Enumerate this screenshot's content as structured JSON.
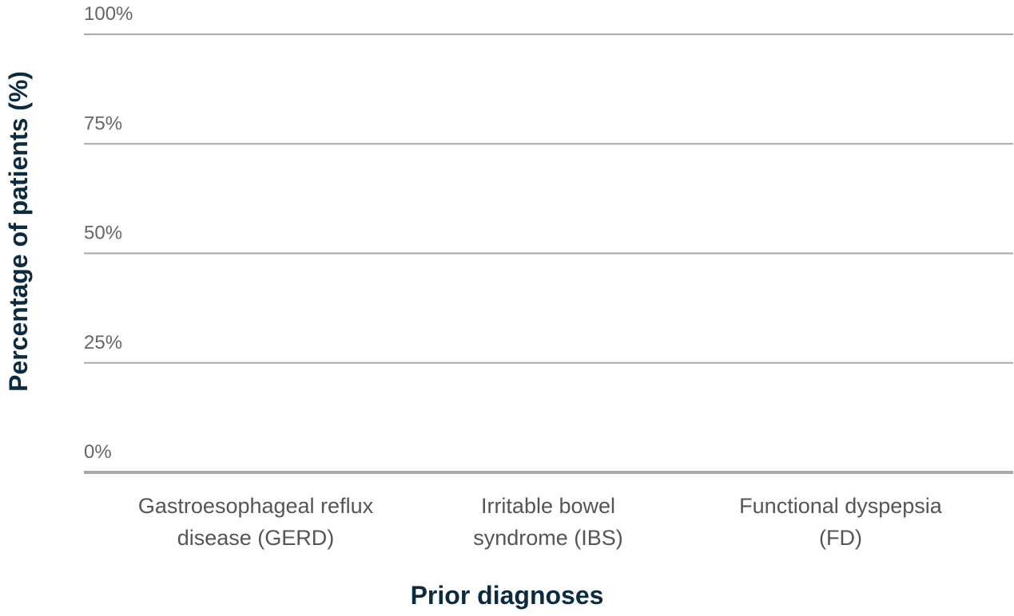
{
  "chart_data": {
    "type": "bar",
    "categories": [
      "Gastroesophageal reflux disease (GERD)",
      "Irritable bowel syndrome (IBS)",
      "Functional dyspepsia (FD)"
    ],
    "ylim": [
      0,
      100
    ],
    "yticks": [
      {
        "value": 0,
        "label": "0%"
      },
      {
        "value": 25,
        "label": "25%"
      },
      {
        "value": 50,
        "label": "50%"
      },
      {
        "value": 75,
        "label": "75%"
      },
      {
        "value": 100,
        "label": "100%"
      }
    ],
    "grid": true,
    "y_label": "Percentage of patients (%)",
    "x_label": "Prior diagnoses"
  }
}
